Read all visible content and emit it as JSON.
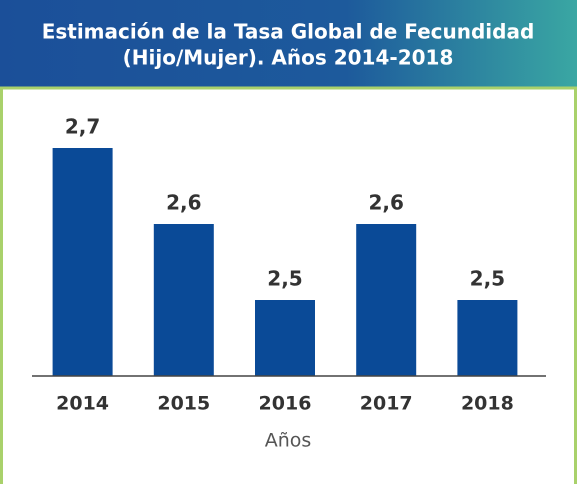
{
  "chart_data": {
    "type": "bar",
    "title": [
      "Estimación de la Tasa Global de Fecundidad",
      "(Hijo/Mujer). Años 2014-2018"
    ],
    "x_label": "Años",
    "categories": [
      "2014",
      "2015",
      "2016",
      "2017",
      "2018"
    ],
    "values": [
      2.7,
      2.6,
      2.5,
      2.6,
      2.5
    ],
    "value_labels": [
      "2,7",
      "2,6",
      "2,5",
      "2,6",
      "2,5"
    ],
    "color": "#0a4a97",
    "ylim": [
      2.4,
      2.8
    ]
  }
}
